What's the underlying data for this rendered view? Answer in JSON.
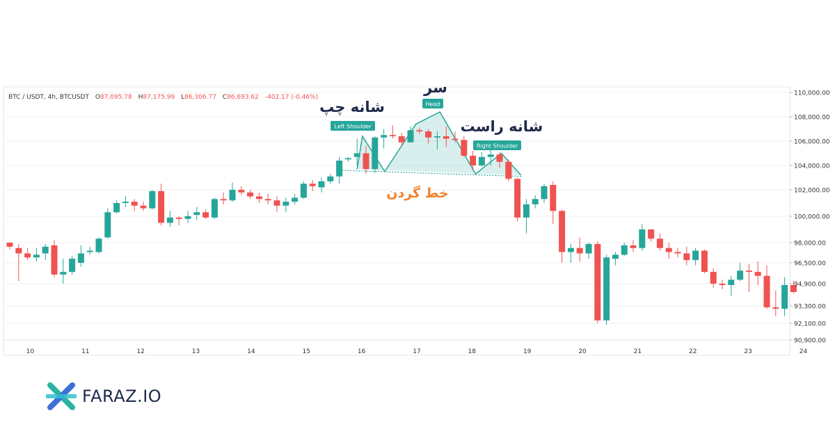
{
  "header": {
    "symbol": "BTC / USDT, 4h, BTCUSDT",
    "o_label": "O",
    "o": "87,095.78",
    "h_label": "H",
    "h": "87,175.99",
    "l_label": "L",
    "l": "86,306.77",
    "c_label": "C",
    "c": "86,693.62",
    "change": "-402.17 (-0.46%)"
  },
  "annotations": {
    "left_shoulder_badge": "Left Shoulder",
    "head_badge": "Head",
    "right_shoulder_badge": "Right Shoulder",
    "left_shoulder_fa": "شانه چپ",
    "head_fa": "سر",
    "right_shoulder_fa": "شانه راست",
    "neckline_fa": "خط گردن"
  },
  "brand": {
    "name": "FARAZ.IO"
  },
  "colors": {
    "up": "#26a69a",
    "down": "#ef5350",
    "pattern": "#26a69a",
    "neckline_label": "#f0822f",
    "title_text": "#1e2a4a"
  },
  "chart_data": {
    "type": "candlestick",
    "y_ticks": [
      "110,000.00",
      "108,000.00",
      "106,000.00",
      "104,000.00",
      "102,000.00",
      "100,000.00",
      "98,000.00",
      "96,500.00",
      "94,900.00",
      "93,300.00",
      "92,100.00",
      "90,900.00"
    ],
    "y_tick_values": [
      110000,
      108000,
      106000,
      104000,
      102000,
      100000,
      98000,
      96500,
      94900,
      93300,
      92100,
      90900
    ],
    "x_ticks": [
      {
        "label": "10",
        "i": 2.3
      },
      {
        "label": "11",
        "i": 8.5
      },
      {
        "label": "12",
        "i": 14.7
      },
      {
        "label": "13",
        "i": 20.9
      },
      {
        "label": "14",
        "i": 27.1
      },
      {
        "label": "15",
        "i": 33.3
      },
      {
        "label": "16",
        "i": 39.5
      },
      {
        "label": "17",
        "i": 45.7
      },
      {
        "label": "18",
        "i": 51.9
      },
      {
        "label": "19",
        "i": 58.1
      },
      {
        "label": "20",
        "i": 64.3
      },
      {
        "label": "21",
        "i": 70.5
      },
      {
        "label": "22",
        "i": 76.7
      },
      {
        "label": "23",
        "i": 82.9
      },
      {
        "label": "24",
        "i": 89.1
      }
    ],
    "candles": [
      [
        98000,
        98000,
        97500,
        97700
      ],
      [
        97600,
        97900,
        95100,
        97200
      ],
      [
        97200,
        97600,
        96700,
        96900
      ],
      [
        96900,
        97600,
        96600,
        97100
      ],
      [
        97200,
        97900,
        96700,
        97700
      ],
      [
        97800,
        98200,
        95400,
        95600
      ],
      [
        95600,
        96800,
        94900,
        95800
      ],
      [
        95800,
        97000,
        95600,
        96800
      ],
      [
        96500,
        97800,
        96200,
        97200
      ],
      [
        97300,
        97700,
        97100,
        97400
      ],
      [
        97300,
        98400,
        97200,
        98300
      ],
      [
        98400,
        100600,
        98300,
        100300
      ],
      [
        100300,
        101200,
        100200,
        101000
      ],
      [
        101000,
        101500,
        100700,
        101100
      ],
      [
        101100,
        101300,
        100400,
        100800
      ],
      [
        100800,
        101100,
        100400,
        100600
      ],
      [
        100600,
        102000,
        100500,
        101900
      ],
      [
        101900,
        102500,
        99300,
        99500
      ],
      [
        99500,
        100400,
        99200,
        99900
      ],
      [
        99900,
        100000,
        99300,
        99800
      ],
      [
        99800,
        100400,
        99500,
        100000
      ],
      [
        100100,
        100700,
        99700,
        100300
      ],
      [
        100300,
        100500,
        99800,
        99900
      ],
      [
        99900,
        101400,
        99800,
        101300
      ],
      [
        101300,
        101800,
        100900,
        101200
      ],
      [
        101200,
        102600,
        101100,
        102000
      ],
      [
        102000,
        102300,
        101600,
        101800
      ],
      [
        101800,
        102000,
        101300,
        101500
      ],
      [
        101500,
        101800,
        101000,
        101300
      ],
      [
        101300,
        101700,
        100900,
        101200
      ],
      [
        101200,
        101500,
        100300,
        100800
      ],
      [
        100800,
        101400,
        100300,
        101100
      ],
      [
        101100,
        101700,
        100900,
        101400
      ],
      [
        101400,
        102700,
        101300,
        102500
      ],
      [
        102500,
        102800,
        101900,
        102300
      ],
      [
        102200,
        103000,
        101800,
        102700
      ],
      [
        102700,
        103300,
        102500,
        103100
      ],
      [
        103100,
        104700,
        102500,
        104400
      ],
      [
        104500,
        104700,
        104300,
        104600
      ],
      [
        104700,
        106200,
        104000,
        105000
      ],
      [
        105000,
        105600,
        103300,
        103700
      ],
      [
        103700,
        106400,
        103400,
        106300
      ],
      [
        106300,
        107000,
        105400,
        106500
      ],
      [
        106500,
        107300,
        106200,
        106400
      ],
      [
        106400,
        106700,
        105600,
        105900
      ],
      [
        105900,
        107200,
        105900,
        106900
      ],
      [
        106900,
        107100,
        106600,
        106800
      ],
      [
        106800,
        107000,
        105800,
        106300
      ],
      [
        106300,
        106800,
        105300,
        106400
      ],
      [
        106400,
        107200,
        105500,
        106200
      ],
      [
        106200,
        106800,
        105900,
        106100
      ],
      [
        106100,
        106400,
        104700,
        104800
      ],
      [
        104800,
        105200,
        103600,
        104000
      ],
      [
        104000,
        105100,
        103900,
        104700
      ],
      [
        104700,
        105300,
        104000,
        104900
      ],
      [
        104900,
        105100,
        103800,
        104300
      ],
      [
        104300,
        104500,
        102700,
        102900
      ],
      [
        102900,
        103000,
        99600,
        99900
      ],
      [
        99900,
        101300,
        98700,
        100900
      ],
      [
        100900,
        101600,
        100600,
        101300
      ],
      [
        101300,
        102500,
        101000,
        102300
      ],
      [
        102400,
        102700,
        99400,
        100400
      ],
      [
        100400,
        100500,
        96500,
        97300
      ],
      [
        97300,
        97900,
        96500,
        97600
      ],
      [
        97600,
        98400,
        96600,
        97200
      ],
      [
        97200,
        98000,
        96800,
        97900
      ],
      [
        97900,
        98100,
        92100,
        92300
      ],
      [
        92300,
        97100,
        92000,
        96900
      ],
      [
        96800,
        97300,
        96300,
        97100
      ],
      [
        97100,
        98000,
        97000,
        97800
      ],
      [
        97800,
        98200,
        97300,
        97600
      ],
      [
        97600,
        99400,
        97400,
        99000
      ],
      [
        99000,
        99000,
        98100,
        98300
      ],
      [
        98300,
        98700,
        97400,
        97600
      ],
      [
        97600,
        98000,
        96800,
        97300
      ],
      [
        97300,
        97600,
        96900,
        97200
      ],
      [
        97200,
        97700,
        96300,
        96700
      ],
      [
        96700,
        97600,
        96300,
        97400
      ],
      [
        97400,
        97500,
        95700,
        95800
      ],
      [
        95800,
        96100,
        94600,
        94900
      ],
      [
        94900,
        95200,
        94500,
        94800
      ],
      [
        94800,
        95500,
        94000,
        95200
      ],
      [
        95200,
        96500,
        95100,
        95900
      ],
      [
        95900,
        96400,
        94300,
        95800
      ],
      [
        95800,
        96600,
        94800,
        95500
      ],
      [
        95500,
        96300,
        93100,
        93200
      ],
      [
        93200,
        94400,
        92600,
        93100
      ],
      [
        93100,
        95400,
        92600,
        94800
      ],
      [
        94800,
        95100,
        94200,
        94300
      ]
    ],
    "pattern_line": [
      [
        39.0,
        103700
      ],
      [
        39.6,
        106400
      ],
      [
        42.1,
        103500
      ],
      [
        45.6,
        107400
      ],
      [
        48.3,
        108400
      ],
      [
        52.3,
        103300
      ],
      [
        55.2,
        105000
      ],
      [
        57.4,
        103200
      ]
    ],
    "neckline": [
      [
        37.3,
        103600
      ],
      [
        57.6,
        103100
      ]
    ]
  }
}
